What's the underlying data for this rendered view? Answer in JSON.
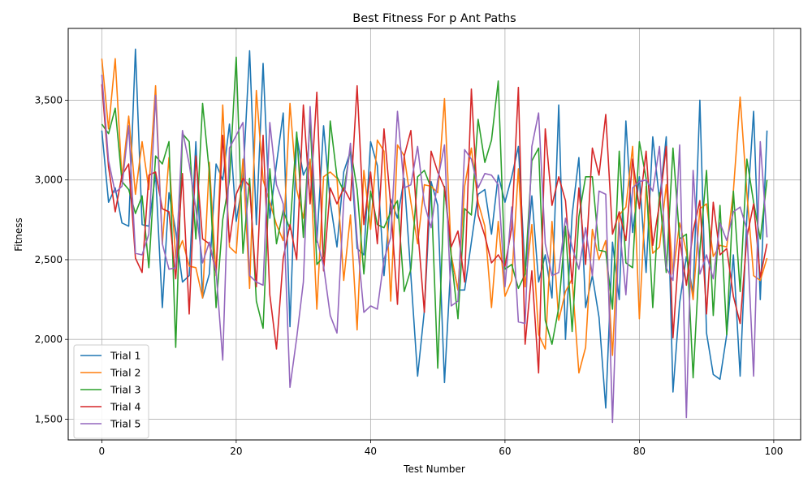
{
  "chart_data": {
    "type": "line",
    "title": "Best Fitness For p Ant Paths",
    "xlabel": "Test Number",
    "ylabel": "Fitness",
    "xlim": [
      -5,
      104
    ],
    "ylim": [
      1370,
      3950
    ],
    "xticks": [
      0,
      20,
      40,
      60,
      80,
      100
    ],
    "xtick_labels": [
      "0",
      "20",
      "40",
      "60",
      "80",
      "100"
    ],
    "yticks": [
      1500,
      2000,
      2500,
      3000,
      3500
    ],
    "ytick_labels": [
      "1,500",
      "2,000",
      "2,500",
      "3,000",
      "3,500"
    ],
    "grid": true,
    "legend_position": "lower-left",
    "x": [
      0,
      1,
      2,
      3,
      4,
      5,
      6,
      7,
      8,
      9,
      10,
      11,
      12,
      13,
      14,
      15,
      16,
      17,
      18,
      19,
      20,
      21,
      22,
      23,
      24,
      25,
      26,
      27,
      28,
      29,
      30,
      31,
      32,
      33,
      34,
      35,
      36,
      37,
      38,
      39,
      40,
      41,
      42,
      43,
      44,
      45,
      46,
      47,
      48,
      49,
      50,
      51,
      52,
      53,
      54,
      55,
      56,
      57,
      58,
      59,
      60,
      61,
      62,
      63,
      64,
      65,
      66,
      67,
      68,
      69,
      70,
      71,
      72,
      73,
      74,
      75,
      76,
      77,
      78,
      79,
      80,
      81,
      82,
      83,
      84,
      85,
      86,
      87,
      88,
      89,
      90,
      91,
      92,
      93,
      94,
      95,
      96,
      97,
      98,
      99
    ],
    "series": [
      {
        "name": "Trial 1",
        "color": "#1f77b4",
        "values": [
          3310,
          2860,
          2950,
          2730,
          2710,
          3820,
          2720,
          2710,
          3040,
          2200,
          2920,
          2680,
          2360,
          2400,
          3240,
          2260,
          2410,
          3100,
          3000,
          3350,
          2740,
          3000,
          3810,
          2720,
          3730,
          2760,
          3100,
          3420,
          2080,
          3280,
          3030,
          3120,
          2610,
          3340,
          2860,
          2580,
          3050,
          3180,
          2570,
          2530,
          3240,
          3090,
          2400,
          2880,
          2760,
          3010,
          2400,
          1770,
          2180,
          2990,
          2840,
          1730,
          2520,
          2310,
          2310,
          2610,
          2910,
          2940,
          2660,
          3030,
          2860,
          3020,
          3210,
          2420,
          2900,
          2360,
          2530,
          2260,
          3470,
          2000,
          2780,
          3140,
          2200,
          2400,
          2140,
          1570,
          2610,
          2250,
          3370,
          2670,
          3020,
          2420,
          3270,
          2870,
          3270,
          1670,
          2230,
          2520,
          2290,
          3500,
          2040,
          1780,
          1750,
          2030,
          2530,
          1770,
          2770,
          3430,
          2250,
          3310
        ]
      },
      {
        "name": "Trial 2",
        "color": "#ff7f0e",
        "values": [
          3760,
          3320,
          3760,
          3010,
          3400,
          2910,
          3240,
          2940,
          3590,
          2600,
          3140,
          2510,
          2620,
          2460,
          2450,
          2260,
          3110,
          2400,
          3470,
          2580,
          2540,
          3130,
          2320,
          3560,
          3000,
          2860,
          2720,
          2620,
          3480,
          2940,
          2760,
          3130,
          2190,
          3020,
          3050,
          3010,
          2370,
          2780,
          2060,
          3060,
          2690,
          3250,
          3180,
          2240,
          3220,
          3150,
          2860,
          2600,
          2970,
          2960,
          2920,
          3510,
          2530,
          2310,
          2960,
          3200,
          2860,
          2710,
          2200,
          2740,
          2270,
          2370,
          3070,
          2330,
          2720,
          2030,
          1940,
          2740,
          2120,
          2300,
          2380,
          1790,
          1950,
          2690,
          2500,
          2620,
          1900,
          2780,
          2830,
          3210,
          2130,
          2960,
          2540,
          2580,
          2970,
          2410,
          2730,
          2550,
          2250,
          2820,
          2850,
          2520,
          2590,
          2580,
          2930,
          3520,
          2920,
          2400,
          2370,
          2510
        ]
      },
      {
        "name": "Trial 3",
        "color": "#2ca02c",
        "values": [
          3350,
          3290,
          3450,
          2990,
          2940,
          2790,
          2900,
          2450,
          3150,
          3100,
          3240,
          1950,
          3290,
          3240,
          2630,
          3480,
          3050,
          2200,
          2750,
          3000,
          3770,
          2540,
          3010,
          2240,
          2070,
          3070,
          2600,
          2810,
          2690,
          3300,
          2640,
          3380,
          2470,
          2520,
          3370,
          3020,
          2930,
          3200,
          2940,
          2410,
          2930,
          2720,
          2700,
          2800,
          2870,
          2300,
          2440,
          3020,
          3060,
          2950,
          1820,
          2960,
          2520,
          2130,
          2820,
          2780,
          3380,
          3110,
          3250,
          3620,
          2440,
          2470,
          2320,
          2410,
          3120,
          3200,
          2120,
          1970,
          2200,
          2710,
          2050,
          2770,
          3020,
          3020,
          2560,
          2550,
          2190,
          3180,
          2480,
          2450,
          3240,
          3010,
          2200,
          2920,
          2420,
          3200,
          2630,
          2660,
          1760,
          2560,
          3060,
          2150,
          2840,
          2030,
          2930,
          2300,
          3130,
          2860,
          2630,
          3000
        ]
      },
      {
        "name": "Trial 4",
        "color": "#d62728",
        "values": [
          3600,
          3080,
          2800,
          3030,
          3100,
          2510,
          2420,
          3030,
          3050,
          2820,
          2800,
          2380,
          3040,
          2160,
          3150,
          2630,
          2600,
          2420,
          3280,
          2610,
          2910,
          3010,
          2960,
          2330,
          3280,
          2280,
          1940,
          2510,
          2720,
          2500,
          3470,
          2850,
          3550,
          2430,
          2950,
          2850,
          2950,
          2870,
          3590,
          2720,
          3050,
          2600,
          3320,
          2840,
          2220,
          3150,
          3310,
          2700,
          2170,
          3180,
          3050,
          2950,
          2580,
          2680,
          2360,
          3570,
          2780,
          2650,
          2480,
          2530,
          2460,
          2700,
          3580,
          1970,
          2430,
          1790,
          3320,
          2840,
          3020,
          2870,
          2350,
          2950,
          2470,
          3200,
          3030,
          3410,
          2660,
          2800,
          2620,
          3130,
          2820,
          3180,
          2590,
          2850,
          3210,
          2010,
          2630,
          2340,
          2680,
          2870,
          2160,
          2860,
          2530,
          2570,
          2270,
          2100,
          2640,
          2850,
          2390,
          2600
        ]
      },
      {
        "name": "Trial 5",
        "color": "#9467bd",
        "values": [
          3660,
          3120,
          2920,
          2960,
          3340,
          2540,
          2530,
          2660,
          3530,
          2600,
          2440,
          2450,
          3310,
          3100,
          2820,
          2480,
          2610,
          2430,
          1870,
          3200,
          3280,
          3360,
          2400,
          2360,
          2340,
          3360,
          2970,
          2850,
          1700,
          2010,
          2360,
          3460,
          2630,
          2460,
          2150,
          2040,
          2870,
          3230,
          2630,
          2170,
          2210,
          2190,
          2500,
          2640,
          3430,
          2950,
          2970,
          3210,
          2850,
          2700,
          3000,
          3220,
          2210,
          2240,
          3190,
          3130,
          2950,
          3040,
          3030,
          2970,
          2330,
          2830,
          2110,
          2100,
          3210,
          3420,
          2600,
          2400,
          2420,
          2760,
          2580,
          2440,
          2700,
          2400,
          2930,
          2910,
          1480,
          2730,
          2280,
          2950,
          2990,
          3000,
          2930,
          3210,
          2450,
          2370,
          3220,
          1510,
          3060,
          2410,
          2530,
          2380,
          2730,
          2620,
          2800,
          2830,
          2690,
          1770,
          3240,
          2640
        ]
      }
    ]
  }
}
